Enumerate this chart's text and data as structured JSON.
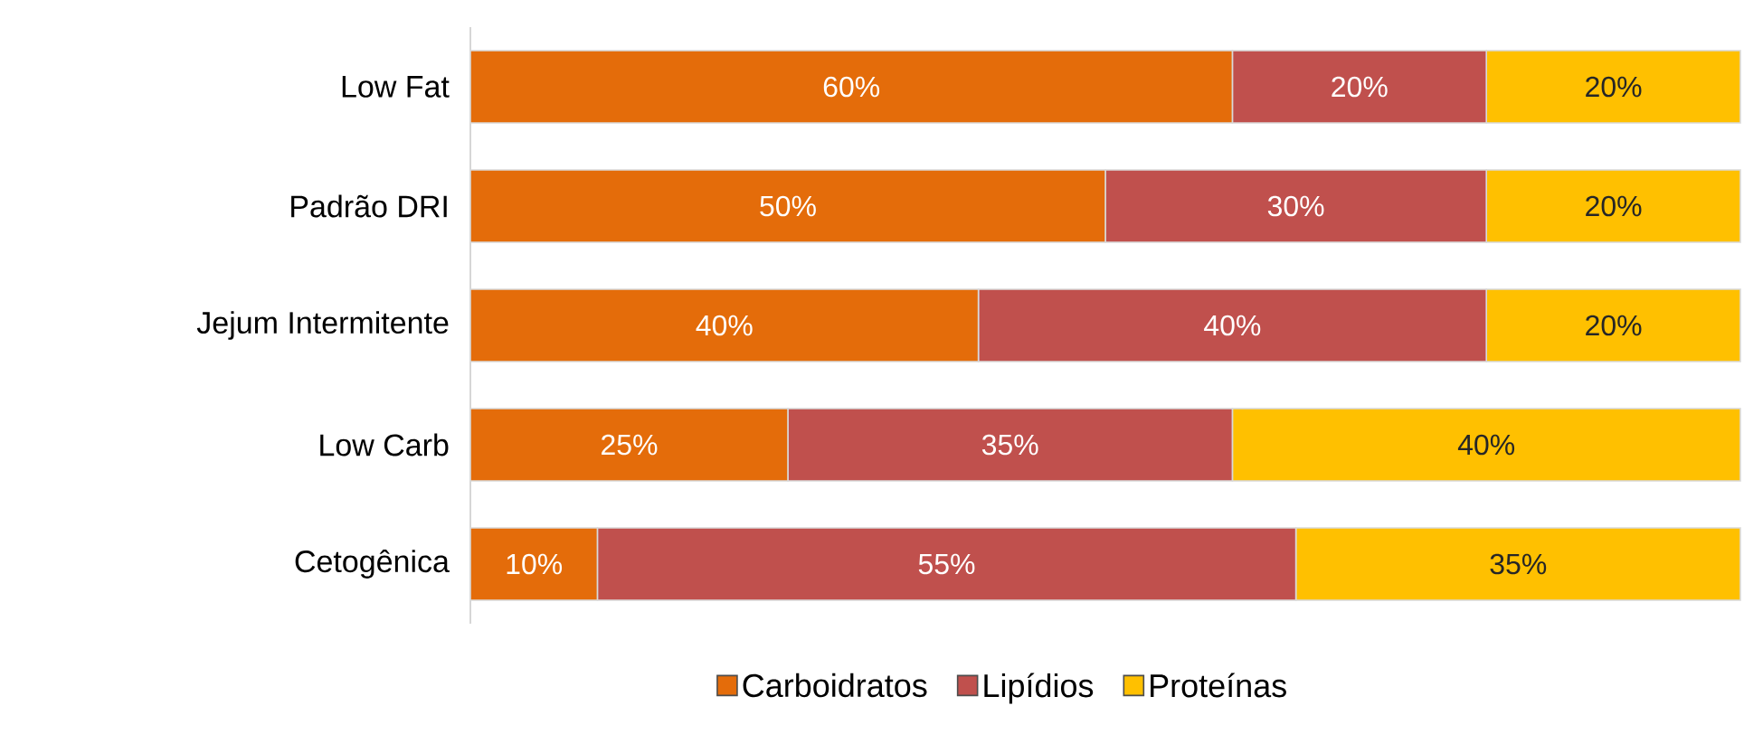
{
  "chart_data": {
    "type": "bar",
    "orientation": "horizontal",
    "stacked": true,
    "legend": "bottom",
    "categories": [
      "Low Fat",
      "Padrão DRI",
      "Jejum Intermitente",
      "Low Carb",
      "Cetogênica"
    ],
    "series": [
      {
        "name": "Carboidratos",
        "color": "#e46c0a",
        "values": [
          60,
          50,
          40,
          25,
          10
        ],
        "value_labels": [
          "60%",
          "50%",
          "40%",
          "25%",
          "10%"
        ]
      },
      {
        "name": "Lipídios",
        "color": "#c0504d",
        "values": [
          20,
          30,
          40,
          35,
          55
        ],
        "value_labels": [
          "20%",
          "30%",
          "40%",
          "35%",
          "55%"
        ]
      },
      {
        "name": "Proteínas",
        "color": "#ffc000",
        "values": [
          20,
          20,
          20,
          40,
          35
        ],
        "value_labels": [
          "20%",
          "20%",
          "20%",
          "40%",
          "35%"
        ]
      }
    ]
  }
}
